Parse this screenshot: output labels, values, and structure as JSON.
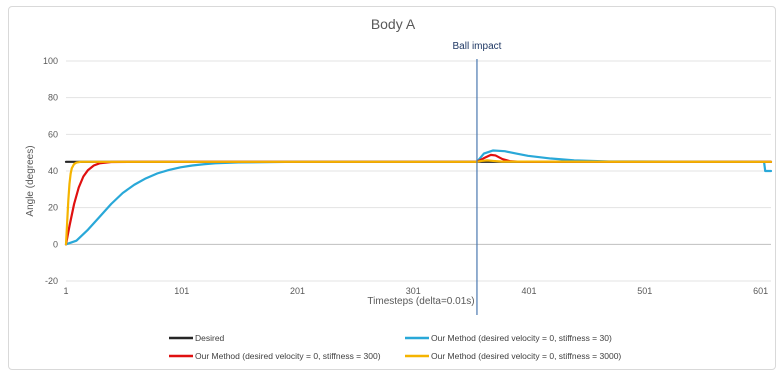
{
  "chart_data": {
    "type": "line",
    "title": "Body A",
    "xlabel": "Timesteps (delta=0.01s)",
    "ylabel": "Angle (degrees)",
    "xlim": [
      1,
      610
    ],
    "ylim": [
      -20,
      100
    ],
    "x_ticks": [
      "1",
      "101",
      "201",
      "301",
      "401",
      "501",
      "601"
    ],
    "y_ticks": [
      "-20",
      "0",
      "20",
      "40",
      "60",
      "80",
      "100"
    ],
    "grid": "horizontal",
    "legend": "bottom",
    "annotation": {
      "label": "Ball impact",
      "x": 356
    },
    "series": [
      {
        "name": "Desired",
        "color": "#262626",
        "points": [
          [
            1,
            45
          ],
          [
            356,
            45
          ],
          [
            610,
            45
          ]
        ]
      },
      {
        "name": "Our Method (desired velocity = 0, stiffness = 30)",
        "color": "#29a8d8",
        "points": [
          [
            1,
            0
          ],
          [
            10,
            2
          ],
          [
            20,
            8
          ],
          [
            30,
            15
          ],
          [
            40,
            22
          ],
          [
            50,
            28
          ],
          [
            60,
            32.5
          ],
          [
            70,
            36
          ],
          [
            80,
            38.7
          ],
          [
            90,
            40.6
          ],
          [
            100,
            42
          ],
          [
            110,
            43
          ],
          [
            120,
            43.7
          ],
          [
            130,
            44.2
          ],
          [
            150,
            44.7
          ],
          [
            200,
            45
          ],
          [
            356,
            45
          ],
          [
            362,
            49.5
          ],
          [
            370,
            51.2
          ],
          [
            380,
            50.8
          ],
          [
            390,
            49.5
          ],
          [
            400,
            48.3
          ],
          [
            420,
            46.8
          ],
          [
            440,
            45.8
          ],
          [
            470,
            45.2
          ],
          [
            600,
            45
          ],
          [
            604,
            45
          ],
          [
            605,
            40
          ],
          [
            610,
            40
          ]
        ]
      },
      {
        "name": "Our Method (desired velocity = 0, stiffness = 300)",
        "color": "#e01010",
        "points": [
          [
            1,
            0
          ],
          [
            4,
            10
          ],
          [
            8,
            22
          ],
          [
            12,
            31
          ],
          [
            16,
            37
          ],
          [
            20,
            40.5
          ],
          [
            25,
            43
          ],
          [
            30,
            44.2
          ],
          [
            40,
            44.9
          ],
          [
            60,
            45
          ],
          [
            356,
            45
          ],
          [
            362,
            47
          ],
          [
            368,
            48.8
          ],
          [
            372,
            48.5
          ],
          [
            378,
            46.5
          ],
          [
            385,
            45.3
          ],
          [
            395,
            45
          ],
          [
            610,
            45
          ]
        ]
      },
      {
        "name": "Our Method (desired velocity = 0, stiffness = 3000)",
        "color": "#f5b400",
        "points": [
          [
            1,
            0
          ],
          [
            2,
            12
          ],
          [
            3,
            24
          ],
          [
            4,
            33
          ],
          [
            5,
            38.5
          ],
          [
            6,
            41.5
          ],
          [
            8,
            43.8
          ],
          [
            10,
            44.6
          ],
          [
            14,
            45
          ],
          [
            356,
            45
          ],
          [
            360,
            45.5
          ],
          [
            365,
            45.8
          ],
          [
            370,
            45.5
          ],
          [
            378,
            45.1
          ],
          [
            610,
            45
          ]
        ]
      }
    ]
  }
}
